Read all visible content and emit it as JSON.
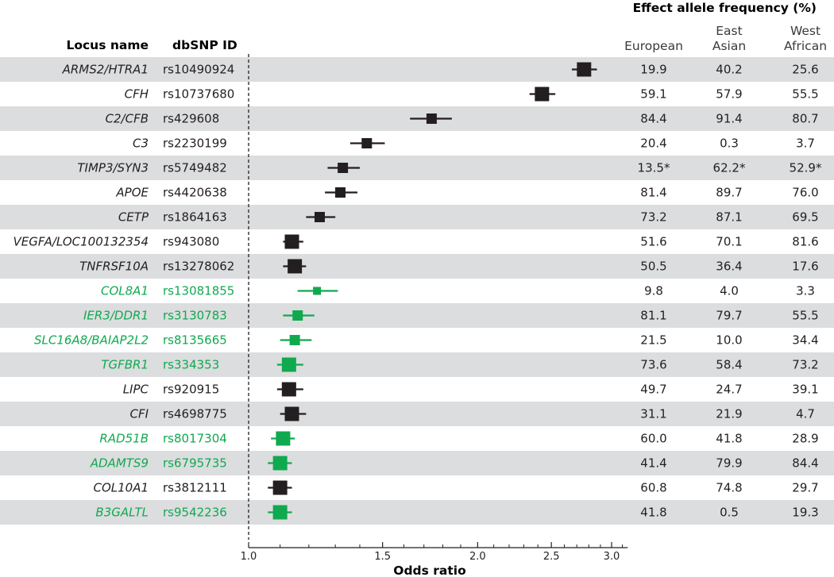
{
  "chart_data": {
    "type": "forest",
    "headers": {
      "locus": "Locus name",
      "snp": "dbSNP ID",
      "freq_title": "Effect allele frequency (%)",
      "populations": [
        {
          "line1": "",
          "line2": "European"
        },
        {
          "line1": "East",
          "line2": "Asian"
        },
        {
          "line1": "West",
          "line2": "African"
        }
      ]
    },
    "xlabel": "Odds ratio",
    "x_scale": "log",
    "xlim": [
      1.0,
      3.15
    ],
    "xticks": [
      {
        "value": 1.0,
        "label": "1.0"
      },
      {
        "value": 1.5,
        "label": "1.5"
      },
      {
        "value": 2.0,
        "label": "2.0"
      },
      {
        "value": 2.5,
        "label": "2.5"
      },
      {
        "value": 3.0,
        "label": "3.0"
      }
    ],
    "minor_ticks": [
      1.1,
      1.2,
      1.3,
      1.4,
      1.6,
      1.7,
      1.8,
      1.9,
      2.1,
      2.2,
      2.3,
      2.4,
      2.6,
      2.7,
      2.8,
      2.9,
      3.1
    ],
    "reference_line": 1.0,
    "colors": {
      "known": "#231f20",
      "novel": "#10a94f",
      "band": "#dcdddf",
      "text": "#231f20"
    },
    "rows": [
      {
        "locus": "ARMS2/HTRA1",
        "snp": "rs10490924",
        "or": 2.76,
        "lo": 2.66,
        "hi": 2.87,
        "weight": 3,
        "novel": false,
        "eur": "19.9",
        "eas": "40.2",
        "waf": "25.6"
      },
      {
        "locus": "CFH",
        "snp": "rs10737680",
        "or": 2.43,
        "lo": 2.34,
        "hi": 2.53,
        "weight": 3,
        "novel": false,
        "eur": "59.1",
        "eas": "57.9",
        "waf": "55.5"
      },
      {
        "locus": "C2/CFB",
        "snp": "rs429608",
        "or": 1.74,
        "lo": 1.63,
        "hi": 1.85,
        "weight": 2,
        "novel": false,
        "eur": "84.4",
        "eas": "91.4",
        "waf": "80.7"
      },
      {
        "locus": "C3",
        "snp": "rs2230199",
        "or": 1.43,
        "lo": 1.36,
        "hi": 1.51,
        "weight": 2,
        "novel": false,
        "eur": "20.4",
        "eas": "0.3",
        "waf": "3.7"
      },
      {
        "locus": "TIMP3/SYN3",
        "snp": "rs5749482",
        "or": 1.33,
        "lo": 1.27,
        "hi": 1.4,
        "weight": 2,
        "novel": false,
        "eur": "13.5*",
        "eas": "62.2*",
        "waf": "52.9*"
      },
      {
        "locus": "APOE",
        "snp": "rs4420638",
        "or": 1.32,
        "lo": 1.26,
        "hi": 1.39,
        "weight": 2,
        "novel": false,
        "eur": "81.4",
        "eas": "89.7",
        "waf": "76.0"
      },
      {
        "locus": "CETP",
        "snp": "rs1864163",
        "or": 1.24,
        "lo": 1.19,
        "hi": 1.3,
        "weight": 2,
        "novel": false,
        "eur": "73.2",
        "eas": "87.1",
        "waf": "69.5"
      },
      {
        "locus": "VEGFA/LOC100132354",
        "snp": "rs943080",
        "or": 1.14,
        "lo": 1.11,
        "hi": 1.18,
        "weight": 3,
        "novel": false,
        "eur": "51.6",
        "eas": "70.1",
        "waf": "81.6"
      },
      {
        "locus": "TNFRSF10A",
        "snp": "rs13278062",
        "or": 1.15,
        "lo": 1.11,
        "hi": 1.19,
        "weight": 3,
        "novel": false,
        "eur": "50.5",
        "eas": "36.4",
        "waf": "17.6"
      },
      {
        "locus": "COL8A1",
        "snp": "rs13081855",
        "or": 1.23,
        "lo": 1.16,
        "hi": 1.31,
        "weight": 1,
        "novel": true,
        "eur": "9.8",
        "eas": "4.0",
        "waf": "3.3"
      },
      {
        "locus": "IER3/DDR1",
        "snp": "rs3130783",
        "or": 1.16,
        "lo": 1.11,
        "hi": 1.22,
        "weight": 2,
        "novel": true,
        "eur": "81.1",
        "eas": "79.7",
        "waf": "55.5"
      },
      {
        "locus": "SLC16A8/BAIAP2L2",
        "snp": "rs8135665",
        "or": 1.15,
        "lo": 1.1,
        "hi": 1.21,
        "weight": 2,
        "novel": true,
        "eur": "21.5",
        "eas": "10.0",
        "waf": "34.4"
      },
      {
        "locus": "TGFBR1",
        "snp": "rs334353",
        "or": 1.13,
        "lo": 1.09,
        "hi": 1.18,
        "weight": 3,
        "novel": true,
        "eur": "73.6",
        "eas": "58.4",
        "waf": "73.2"
      },
      {
        "locus": "LIPC",
        "snp": "rs920915",
        "or": 1.13,
        "lo": 1.09,
        "hi": 1.18,
        "weight": 3,
        "novel": false,
        "eur": "49.7",
        "eas": "24.7",
        "waf": "39.1"
      },
      {
        "locus": "CFI",
        "snp": "rs4698775",
        "or": 1.14,
        "lo": 1.1,
        "hi": 1.19,
        "weight": 3,
        "novel": false,
        "eur": "31.1",
        "eas": "21.9",
        "waf": "4.7"
      },
      {
        "locus": "RAD51B",
        "snp": "rs8017304",
        "or": 1.11,
        "lo": 1.07,
        "hi": 1.15,
        "weight": 3,
        "novel": true,
        "eur": "60.0",
        "eas": "41.8",
        "waf": "28.9"
      },
      {
        "locus": "ADAMTS9",
        "snp": "rs6795735",
        "or": 1.1,
        "lo": 1.06,
        "hi": 1.14,
        "weight": 3,
        "novel": true,
        "eur": "41.4",
        "eas": "79.9",
        "waf": "84.4"
      },
      {
        "locus": "COL10A1",
        "snp": "rs3812111",
        "or": 1.1,
        "lo": 1.06,
        "hi": 1.14,
        "weight": 3,
        "novel": false,
        "eur": "60.8",
        "eas": "74.8",
        "waf": "29.7"
      },
      {
        "locus": "B3GALTL",
        "snp": "rs9542236",
        "or": 1.1,
        "lo": 1.06,
        "hi": 1.14,
        "weight": 3,
        "novel": true,
        "eur": "41.8",
        "eas": "0.5",
        "waf": "19.3"
      }
    ]
  }
}
